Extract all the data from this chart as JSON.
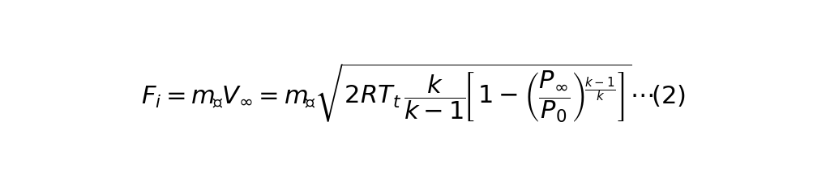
{
  "formula": "$F_i = m_{\\text{测}}V_{\\infty} = m_{\\text{测}}\\sqrt{2RT_t \\dfrac{k}{k-1}\\left[1-\\left(\\dfrac{P_{\\infty}}{P_0}\\right)^{\\frac{k-1}{k}}\\right]}\\cdots(2)$",
  "background_color": "#ffffff",
  "text_color": "#000000",
  "fontsize": 22,
  "fig_width": 10.19,
  "fig_height": 2.3,
  "dpi": 100
}
